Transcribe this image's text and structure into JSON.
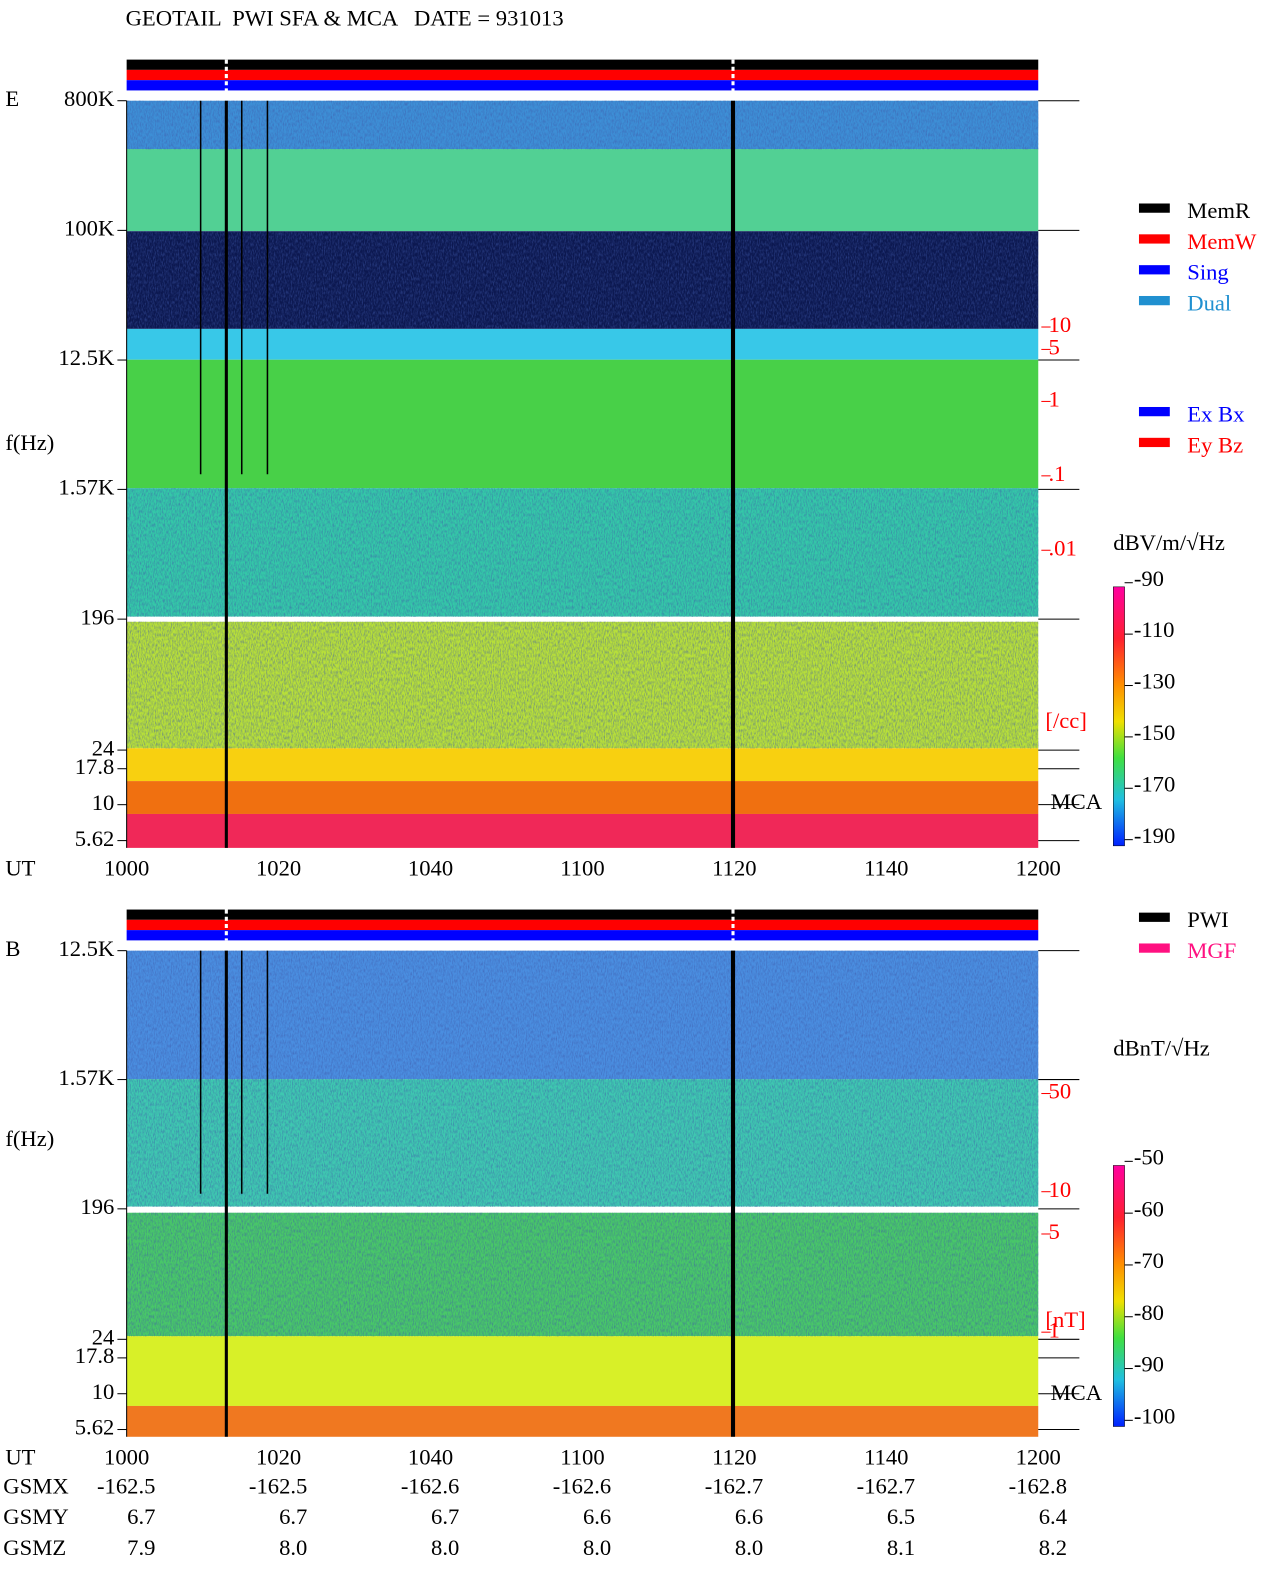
{
  "header": {
    "title": "GEOTAIL  PWI SFA & MCA   DATE = 931013"
  },
  "chart_data": [
    {
      "type": "spectrogram",
      "panel_label": "E",
      "y_label": "f(Hz)",
      "x_label": "UT",
      "log_y": true,
      "ylim": [
        5,
        800000
      ],
      "yticks": [
        {
          "value": 800000,
          "label": "800K"
        },
        {
          "value": 100000,
          "label": "100K"
        },
        {
          "value": 12500,
          "label": "12.5K"
        },
        {
          "value": 1570,
          "label": "1.57K"
        },
        196,
        24,
        17.8,
        10,
        5.62
      ],
      "y2_log": true,
      "y2lim": [
        1e-06,
        11000
      ],
      "y2ticks": [
        10,
        5,
        1,
        {
          "value": 0.1,
          "label": ".1"
        },
        {
          "value": 0.01,
          "label": ".01"
        }
      ],
      "y2_label": "[/cc]",
      "band_label": "MCA",
      "x": [
        "1000",
        "1020",
        "1040",
        "1100",
        "1120",
        "1140",
        "1200"
      ],
      "colorbar": {
        "label": "dBV/m/√Hz",
        "lim": [
          -190,
          -90
        ],
        "ticks": [
          -90,
          -110,
          -130,
          -150,
          -170,
          -190
        ]
      },
      "legend": [
        {
          "name": "MemR",
          "color": "#000000"
        },
        {
          "name": "MemW",
          "color": "#ff0000"
        },
        {
          "name": "Sing",
          "color": "#0000ff"
        },
        {
          "name": "Dual",
          "color": "#2090d0"
        }
      ],
      "legend2": [
        {
          "name": "Ex Bx",
          "color": "#0000ff"
        },
        {
          "name": "Ey Bz",
          "color": "#ff0000"
        }
      ]
    },
    {
      "type": "spectrogram",
      "panel_label": "B",
      "y_label": "f(Hz)",
      "x_label": "UT",
      "log_y": true,
      "ylim": [
        5,
        12500
      ],
      "yticks": [
        {
          "value": 12500,
          "label": "12.5K"
        },
        {
          "value": 1570,
          "label": "1.57K"
        },
        196,
        24,
        17.8,
        10,
        5.62
      ],
      "y2_log": true,
      "y2lim": [
        0.18,
        520
      ],
      "y2ticks": [
        50,
        10,
        5,
        1
      ],
      "y2_label": "[nT]",
      "band_label": "MCA",
      "x": [
        "1000",
        "1020",
        "1040",
        "1100",
        "1120",
        "1140",
        "1200"
      ],
      "colorbar": {
        "label": "dBnT/√Hz",
        "lim": [
          -100,
          -50
        ],
        "ticks": [
          -50,
          -60,
          -70,
          -80,
          -90,
          -100
        ]
      },
      "legend": [
        {
          "name": "PWI",
          "color": "#000000"
        },
        {
          "name": "MGF",
          "color": "#ff1080"
        }
      ]
    }
  ],
  "ephemeris": {
    "rows": [
      {
        "label": "GSMX",
        "values": [
          "-162.5",
          "-162.5",
          "-162.6",
          "-162.6",
          "-162.7",
          "-162.7",
          "-162.8"
        ]
      },
      {
        "label": "GSMY",
        "values": [
          "6.7",
          "6.7",
          "6.7",
          "6.6",
          "6.6",
          "6.5",
          "6.4"
        ]
      },
      {
        "label": "GSMZ",
        "values": [
          "7.9",
          "8.0",
          "8.0",
          "8.0",
          "8.0",
          "8.1",
          "8.2"
        ]
      }
    ]
  }
}
